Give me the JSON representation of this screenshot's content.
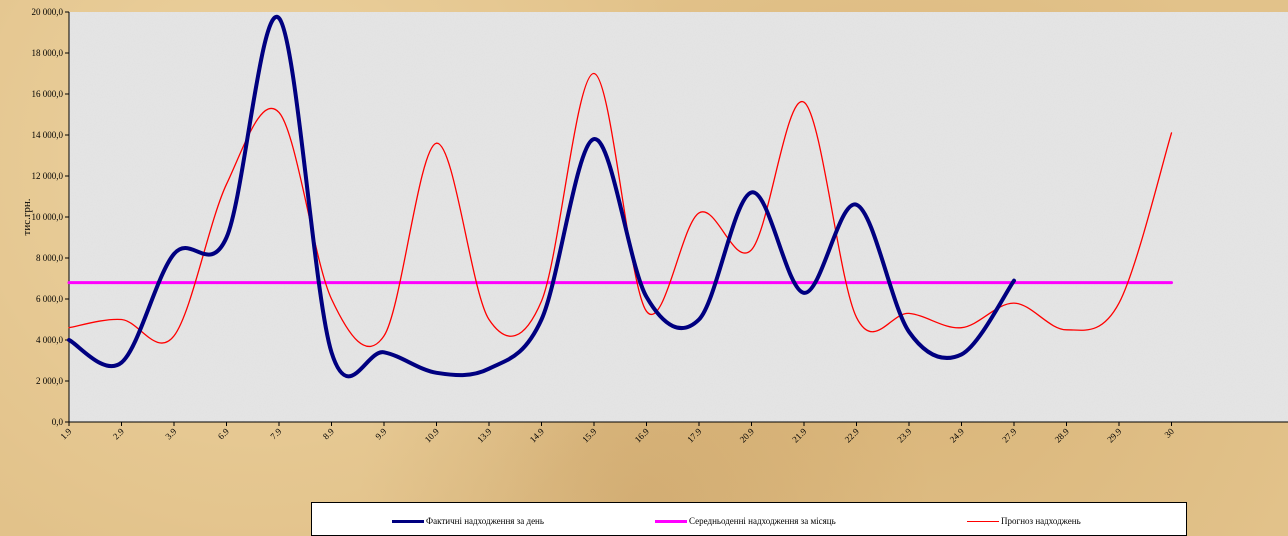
{
  "chart_data": {
    "type": "line",
    "ylabel": "тис.грн.",
    "xlabel": "",
    "ylim": [
      0,
      20000
    ],
    "yticks": [
      0,
      2000,
      4000,
      6000,
      8000,
      10000,
      12000,
      14000,
      16000,
      18000,
      20000
    ],
    "ytick_labels": [
      "0,0",
      "2 000,0",
      "4 000,0",
      "6 000,0",
      "8 000,0",
      "10 000,0",
      "12 000,0",
      "14 000,0",
      "16 000,0",
      "18 000,0",
      "20 000,0"
    ],
    "categories": [
      "1.9",
      "2.9",
      "3.9",
      "6.9",
      "7.9",
      "8.9",
      "9.9",
      "10.9",
      "13.9",
      "14.9",
      "15.9",
      "16.9",
      "17.9",
      "20.9",
      "21.9",
      "22.9",
      "23.9",
      "24.9",
      "27.9",
      "28.9",
      "29.9",
      "30.9"
    ],
    "category_labels_visible": [
      "1.9",
      "2.9",
      "3.9",
      "6.9",
      "7.9",
      "8.9",
      "9.9",
      "10.9",
      "13.9",
      "14.9",
      "15.9",
      "16.9",
      "17.9",
      "20.9",
      "21.9",
      "22.9",
      "23.9",
      "24.9",
      "27.9",
      "28.9",
      "29.9",
      "30"
    ],
    "series": [
      {
        "name": "Фактичні надходження за день",
        "color": "#000080",
        "values": [
          4000,
          2900,
          8200,
          9000,
          19700,
          3400,
          3400,
          2400,
          2600,
          5000,
          13800,
          6100,
          5000,
          11200,
          6300,
          10600,
          4400,
          3300,
          6900,
          null,
          null,
          null
        ]
      },
      {
        "name": "Середньоденні надходження за місяць",
        "color": "#ff00ff",
        "values": [
          6800,
          6800,
          6800,
          6800,
          6800,
          6800,
          6800,
          6800,
          6800,
          6800,
          6800,
          6800,
          6800,
          6800,
          6800,
          6800,
          6800,
          6800,
          6800,
          6800,
          6800,
          6800
        ]
      },
      {
        "name": "Прогноз надходжень",
        "color": "#ff0000",
        "values": [
          4600,
          5000,
          4200,
          11600,
          15100,
          6000,
          4200,
          13600,
          5000,
          5900,
          17000,
          5400,
          10200,
          8400,
          15600,
          5100,
          5300,
          4600,
          5800,
          4500,
          5800,
          14100
        ]
      }
    ],
    "grid": false,
    "legend_position": "bottom"
  }
}
